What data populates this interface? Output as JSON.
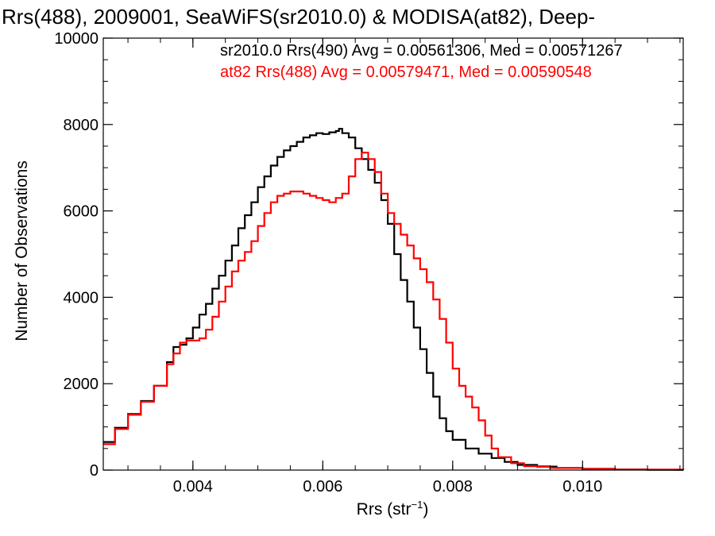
{
  "chart_data": {
    "type": "line",
    "title": "Rrs(488), 2009001, SeaWiFS(sr2010.0) & MODISA(at82), Deep-",
    "xlabel": "Rrs (str",
    "xlabel_sup": "−1",
    "xlabel_end": ")",
    "ylabel": "Number of Observations",
    "xlim": [
      0.00262,
      0.01155
    ],
    "ylim": [
      0,
      10000
    ],
    "x_ticks": [
      {
        "value": 0.004,
        "label": "0.004"
      },
      {
        "value": 0.006,
        "label": "0.006"
      },
      {
        "value": 0.008,
        "label": "0.008"
      },
      {
        "value": 0.01,
        "label": "0.010"
      }
    ],
    "y_ticks": [
      {
        "value": 0,
        "label": "0"
      },
      {
        "value": 2000,
        "label": "2000"
      },
      {
        "value": 4000,
        "label": "4000"
      },
      {
        "value": 6000,
        "label": "6000"
      },
      {
        "value": 8000,
        "label": "8000"
      },
      {
        "value": 10000,
        "label": "10000"
      }
    ],
    "grid": false,
    "legend_position": "top-right",
    "series": [
      {
        "legend": "sr2010.0 Rrs(490) Avg = 0.00561306, Med = 0.00571267",
        "color": "#000000",
        "points": [
          [
            0.00262,
            650
          ],
          [
            0.0028,
            980
          ],
          [
            0.003,
            1300
          ],
          [
            0.0032,
            1600
          ],
          [
            0.0034,
            1950
          ],
          [
            0.0036,
            2500
          ],
          [
            0.0037,
            2850
          ],
          [
            0.0038,
            2900
          ],
          [
            0.0039,
            3050
          ],
          [
            0.004,
            3300
          ],
          [
            0.0041,
            3600
          ],
          [
            0.0042,
            3850
          ],
          [
            0.0043,
            4200
          ],
          [
            0.0044,
            4500
          ],
          [
            0.0045,
            4850
          ],
          [
            0.0046,
            5200
          ],
          [
            0.0047,
            5600
          ],
          [
            0.0048,
            5900
          ],
          [
            0.0049,
            6200
          ],
          [
            0.005,
            6550
          ],
          [
            0.0051,
            6800
          ],
          [
            0.0052,
            7050
          ],
          [
            0.0053,
            7250
          ],
          [
            0.0054,
            7400
          ],
          [
            0.0055,
            7500
          ],
          [
            0.0056,
            7600
          ],
          [
            0.0057,
            7700
          ],
          [
            0.0058,
            7750
          ],
          [
            0.0059,
            7800
          ],
          [
            0.006,
            7780
          ],
          [
            0.0061,
            7820
          ],
          [
            0.0062,
            7850
          ],
          [
            0.00625,
            7900
          ],
          [
            0.0063,
            7800
          ],
          [
            0.0064,
            7700
          ],
          [
            0.0065,
            7450
          ],
          [
            0.0066,
            7200
          ],
          [
            0.0067,
            6950
          ],
          [
            0.0068,
            6650
          ],
          [
            0.0069,
            6250
          ],
          [
            0.007,
            5700
          ],
          [
            0.0071,
            5000
          ],
          [
            0.0072,
            4400
          ],
          [
            0.0073,
            3900
          ],
          [
            0.0074,
            3300
          ],
          [
            0.0075,
            2800
          ],
          [
            0.0076,
            2250
          ],
          [
            0.0077,
            1700
          ],
          [
            0.0078,
            1200
          ],
          [
            0.0079,
            900
          ],
          [
            0.008,
            700
          ],
          [
            0.0082,
            500
          ],
          [
            0.0084,
            380
          ],
          [
            0.0086,
            280
          ],
          [
            0.0088,
            190
          ],
          [
            0.009,
            120
          ],
          [
            0.0093,
            80
          ],
          [
            0.0096,
            50
          ],
          [
            0.01,
            30
          ],
          [
            0.0105,
            15
          ],
          [
            0.011,
            8
          ],
          [
            0.01155,
            5
          ]
        ]
      },
      {
        "legend": "at82 Rrs(488) Avg = 0.00579471, Med = 0.00590548",
        "color": "#ff0000",
        "points": [
          [
            0.00262,
            600
          ],
          [
            0.0028,
            950
          ],
          [
            0.003,
            1280
          ],
          [
            0.0032,
            1580
          ],
          [
            0.0034,
            1950
          ],
          [
            0.0036,
            2450
          ],
          [
            0.0037,
            2700
          ],
          [
            0.0038,
            2950
          ],
          [
            0.0039,
            3000
          ],
          [
            0.004,
            3000
          ],
          [
            0.0041,
            3050
          ],
          [
            0.0042,
            3250
          ],
          [
            0.0043,
            3550
          ],
          [
            0.0044,
            3900
          ],
          [
            0.0045,
            4250
          ],
          [
            0.0046,
            4600
          ],
          [
            0.0047,
            4850
          ],
          [
            0.0048,
            5050
          ],
          [
            0.0049,
            5300
          ],
          [
            0.005,
            5650
          ],
          [
            0.0051,
            5950
          ],
          [
            0.0052,
            6200
          ],
          [
            0.0053,
            6350
          ],
          [
            0.0054,
            6400
          ],
          [
            0.0055,
            6450
          ],
          [
            0.0056,
            6450
          ],
          [
            0.0057,
            6400
          ],
          [
            0.0058,
            6350
          ],
          [
            0.0059,
            6300
          ],
          [
            0.006,
            6250
          ],
          [
            0.0061,
            6200
          ],
          [
            0.0062,
            6300
          ],
          [
            0.0063,
            6400
          ],
          [
            0.0064,
            6800
          ],
          [
            0.0065,
            7200
          ],
          [
            0.0066,
            7350
          ],
          [
            0.0067,
            7200
          ],
          [
            0.0068,
            6900
          ],
          [
            0.0069,
            6400
          ],
          [
            0.007,
            5950
          ],
          [
            0.0071,
            5700
          ],
          [
            0.0072,
            5450
          ],
          [
            0.0073,
            5200
          ],
          [
            0.0074,
            4900
          ],
          [
            0.0075,
            4650
          ],
          [
            0.0076,
            4350
          ],
          [
            0.0077,
            3950
          ],
          [
            0.0078,
            3500
          ],
          [
            0.0079,
            2950
          ],
          [
            0.008,
            2350
          ],
          [
            0.0081,
            1950
          ],
          [
            0.0082,
            1700
          ],
          [
            0.0083,
            1450
          ],
          [
            0.0084,
            1150
          ],
          [
            0.0085,
            800
          ],
          [
            0.0086,
            500
          ],
          [
            0.0087,
            300
          ],
          [
            0.0089,
            160
          ],
          [
            0.0091,
            90
          ],
          [
            0.0095,
            50
          ],
          [
            0.01,
            25
          ],
          [
            0.0105,
            12
          ],
          [
            0.01155,
            5
          ]
        ]
      }
    ]
  }
}
